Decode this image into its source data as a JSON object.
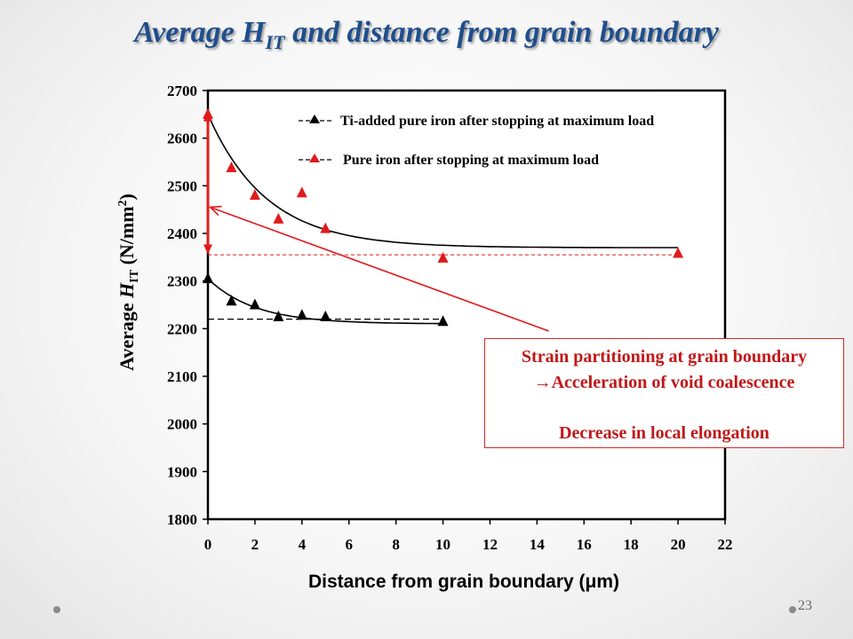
{
  "slide": {
    "title_main": "Average H",
    "title_sub": "IT",
    "title_rest": " and distance from grain boundary",
    "page_number": "23"
  },
  "callout": {
    "line1": "Strain partitioning at grain boundary",
    "line2": "→Acceleration of  void coalescence",
    "line3": "Decrease in local elongation",
    "color": "#d22a2a"
  },
  "chart_data": {
    "type": "scatter",
    "xlabel": "Distance from grain boundary (μm)",
    "ylabel_main": "Average ",
    "ylabel_symbol": "H",
    "ylabel_sub": "IT",
    "ylabel_unit": "  (N/mm",
    "ylabel_sup": "2",
    "ylabel_close": ")",
    "xlim": [
      0,
      22
    ],
    "ylim": [
      1800,
      2700
    ],
    "xticks": [
      0,
      2,
      4,
      6,
      8,
      10,
      12,
      14,
      16,
      18,
      20,
      22
    ],
    "yticks": [
      1800,
      1900,
      2000,
      2100,
      2200,
      2300,
      2400,
      2500,
      2600,
      2700
    ],
    "grid": false,
    "legend_position": "top",
    "series": [
      {
        "name": "Ti-added pure iron after stopping at maximum  load",
        "color": "#000000",
        "marker": "triangle",
        "x": [
          0,
          1,
          2,
          3,
          4,
          5,
          10
        ],
        "y": [
          2305,
          2258,
          2250,
          2225,
          2228,
          2225,
          2215
        ],
        "fit_asymptote": 2210,
        "fit_amplitude": 95,
        "fit_decay": 2.0,
        "fit_xmax": 10,
        "baseline": 2220,
        "baseline_xmax": 10
      },
      {
        "name": "Pure iron after stopping at maximum load",
        "color": "#e01b1b",
        "marker": "triangle",
        "x": [
          0,
          1,
          2,
          3,
          4,
          5,
          10,
          20
        ],
        "y": [
          2650,
          2538,
          2480,
          2430,
          2485,
          2410,
          2348,
          2358
        ],
        "fit_asymptote": 2370,
        "fit_amplitude": 280,
        "fit_decay": 2.5,
        "fit_xmax": 20,
        "baseline": 2355,
        "baseline_xmax": 20
      }
    ],
    "annotations": [
      {
        "type": "double_arrow",
        "x": 0,
        "y1": 2360,
        "y2": 2652,
        "color": "#e01b1b"
      },
      {
        "type": "arrow",
        "from_x": 14.5,
        "from_y": 2195,
        "to_x": 0.1,
        "to_y": 2455,
        "color": "#e01b1b"
      }
    ]
  }
}
